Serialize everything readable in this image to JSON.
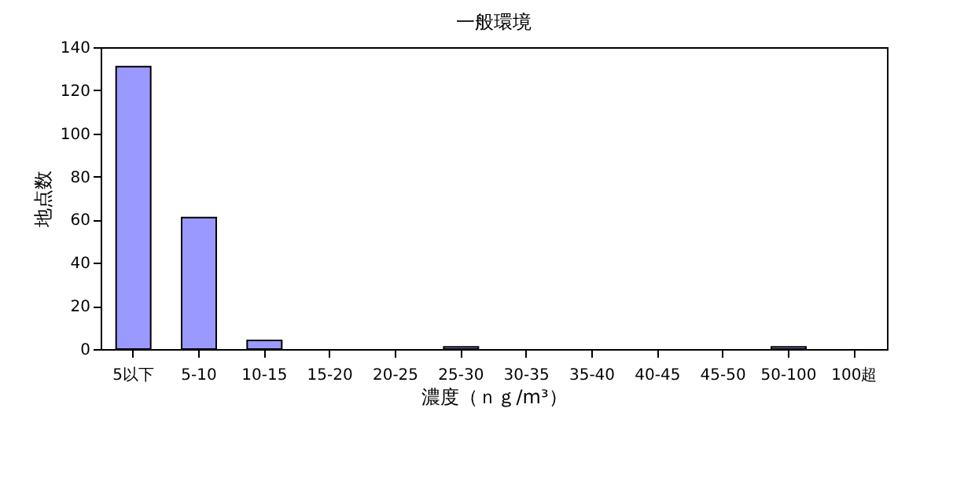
{
  "chart_data": {
    "type": "bar",
    "title": "一般環境",
    "xlabel": "濃度（ｎｇ/m³）",
    "ylabel": "地点数",
    "categories": [
      "5以下",
      "5-10",
      "10-15",
      "15-20",
      "20-25",
      "25-30",
      "30-35",
      "35-40",
      "40-45",
      "45-50",
      "50-100",
      "100超"
    ],
    "values": [
      131,
      61,
      4,
      0,
      0,
      1,
      0,
      0,
      0,
      0,
      1,
      0
    ],
    "color": "#9999ff",
    "ylim": [
      0,
      140
    ],
    "yticks": [
      0,
      20,
      40,
      60,
      80,
      100,
      120,
      140
    ],
    "grid": false
  }
}
